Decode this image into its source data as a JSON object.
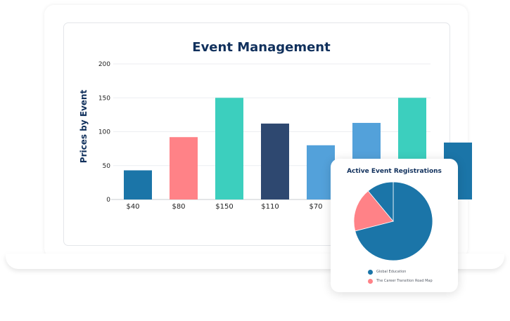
{
  "page": {
    "title": "Event Management"
  },
  "chart_data": [
    {
      "type": "bar",
      "title": "",
      "xlabel": "",
      "ylabel": "Prices by Event",
      "ylim": [
        0,
        200
      ],
      "yticks": [
        0,
        50,
        100,
        150,
        200
      ],
      "grid": true,
      "categories": [
        "$40",
        "$80",
        "$150",
        "$110",
        "$70",
        "",
        "",
        ""
      ],
      "values": [
        43,
        92,
        150,
        112,
        80,
        113,
        150,
        84
      ],
      "colors": [
        "#1b75a8",
        "#ff8287",
        "#3ccfbe",
        "#2e4870",
        "#53a1da",
        "#53a1da",
        "#3ccfbe",
        "#1b75a8"
      ]
    },
    {
      "type": "pie",
      "title": "Active Event Registrations",
      "legend_position": "bottom",
      "labels": [
        "Global Education",
        "The Career Transition Road Map",
        ""
      ],
      "values": [
        71,
        18,
        11
      ],
      "colors": [
        "#1b75a8",
        "#ff8287",
        "#1b75a8"
      ],
      "legend": [
        {
          "label": "Global Education",
          "color": "#1b75a8"
        },
        {
          "label": "The Career Transition Road Map",
          "color": "#ff8287"
        }
      ]
    }
  ]
}
